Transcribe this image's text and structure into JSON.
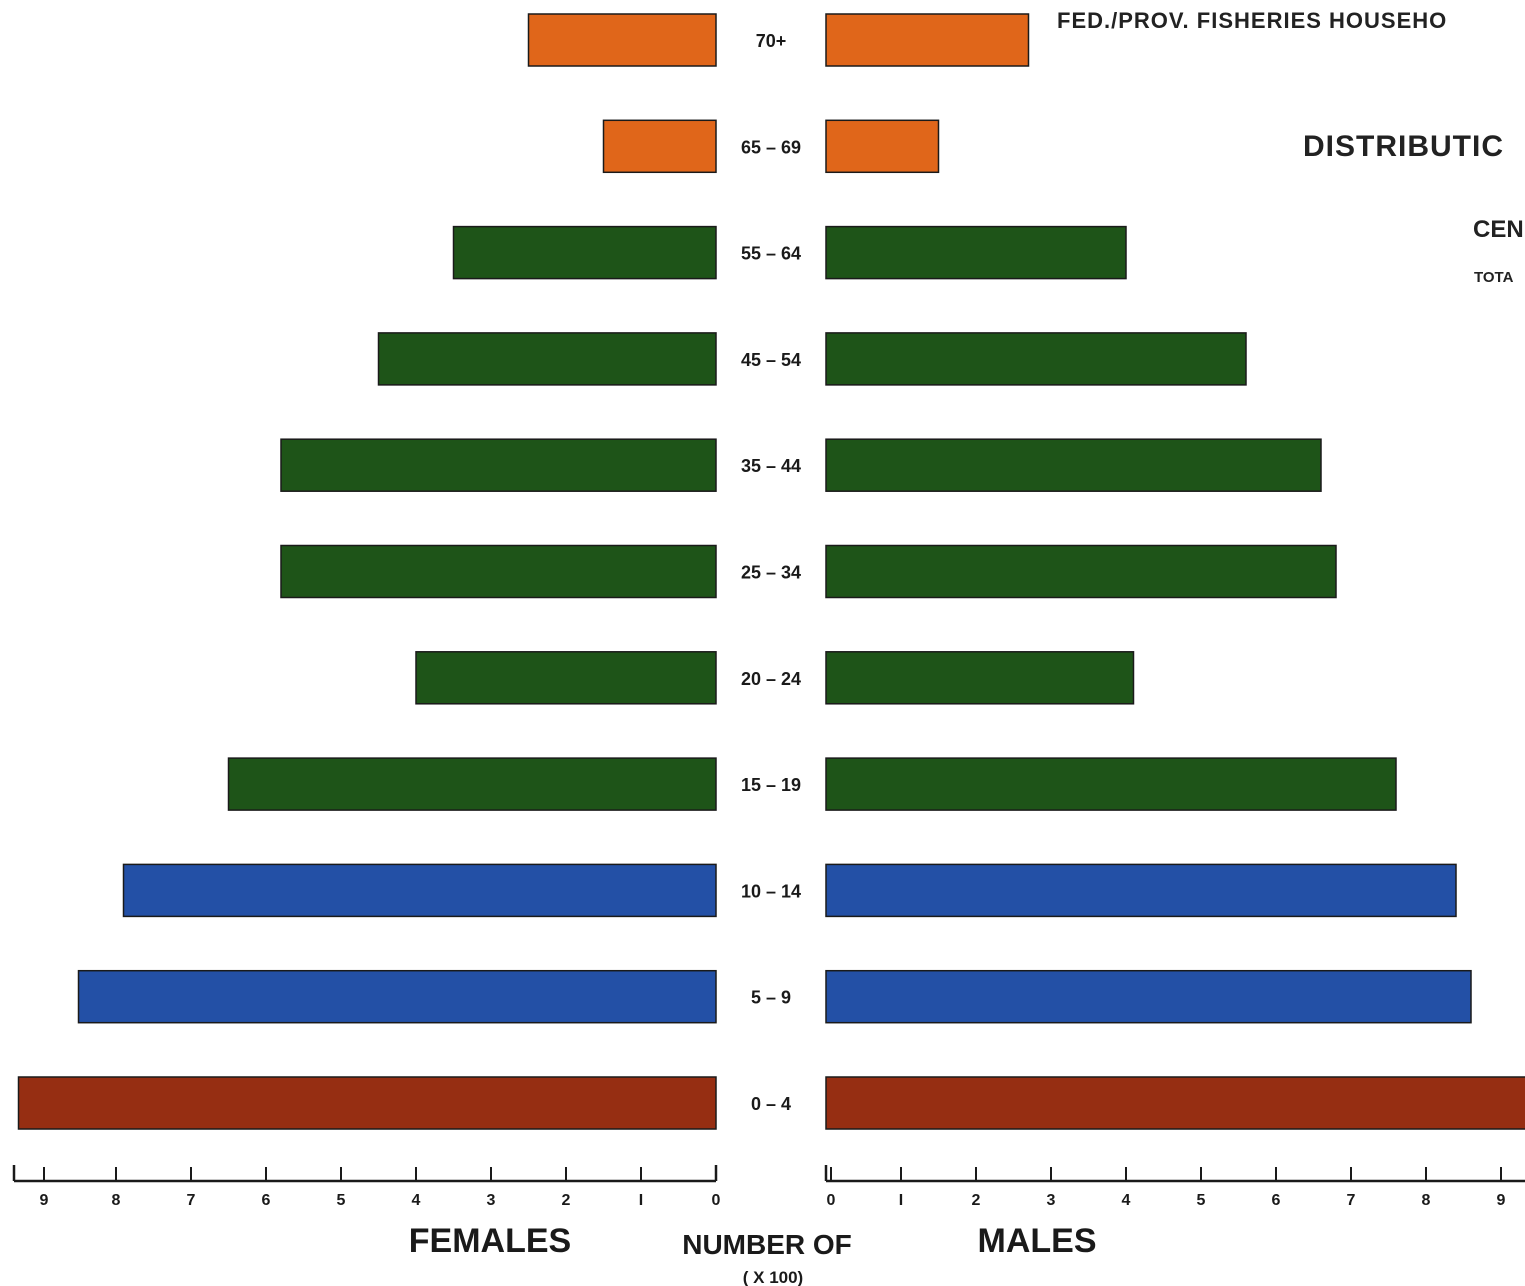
{
  "header": {
    "title": "FED./PROV. FISHERIES HOUSEHO",
    "heading": "DISTRIBUTIC",
    "subheading": "CEN",
    "note": "TOTA"
  },
  "axes": {
    "left_label": "FEMALES",
    "center_label": "NUMBER OF",
    "right_label": "MALES",
    "unit_label": "( X 100)",
    "female_ticks": [
      "9",
      "8",
      "7",
      "6",
      "5",
      "4",
      "3",
      "2",
      "I",
      "0"
    ],
    "male_ticks": [
      "0",
      "I",
      "2",
      "3",
      "4",
      "5",
      "6",
      "7",
      "8",
      "9"
    ]
  },
  "colors": {
    "orange": "#e0661a",
    "green": "#1e5418",
    "blue": "#2350a6",
    "red": "#962e12"
  },
  "chart_data": {
    "type": "bar",
    "orientation": "horizontal-pyramid",
    "categories": [
      "70+",
      "65-69",
      "55-64",
      "45-54",
      "35-44",
      "25-34",
      "20-24",
      "15-19",
      "10-14",
      "5-9",
      "0-4"
    ],
    "display_labels": [
      "70+",
      "65 – 69",
      "55 – 64",
      "45 – 54",
      "35 – 44",
      "25 – 34",
      "20 – 24",
      "15 – 19",
      "10 – 14",
      "5 – 9",
      "0 – 4"
    ],
    "series": [
      {
        "name": "FEMALES",
        "values": [
          2.5,
          1.5,
          3.5,
          4.5,
          5.8,
          5.8,
          4.0,
          6.5,
          7.9,
          8.5,
          9.3
        ]
      },
      {
        "name": "MALES",
        "values": [
          2.7,
          1.5,
          4.0,
          5.6,
          6.6,
          6.8,
          4.1,
          7.6,
          8.4,
          8.6,
          9.5
        ]
      }
    ],
    "band_colors": [
      "orange",
      "orange",
      "green",
      "green",
      "green",
      "green",
      "green",
      "green",
      "blue",
      "blue",
      "red"
    ],
    "xlabel": "NUMBER OF ( X 100)",
    "xlim": [
      0,
      9
    ]
  }
}
